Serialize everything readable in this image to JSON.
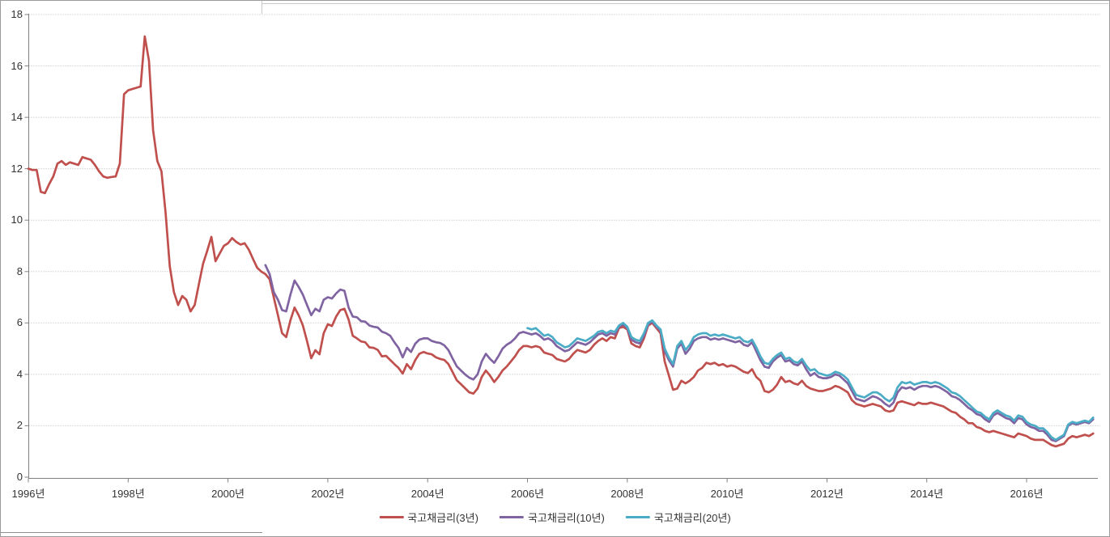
{
  "chart_data": {
    "type": "line",
    "title": "",
    "frequency": "monthly",
    "x_range": [
      "1996-01",
      "2017-05"
    ],
    "ylim": [
      0,
      18
    ],
    "grid": "horizontal-dotted",
    "legend_position": "bottom-center",
    "y_axis": {
      "min": 0,
      "max": 18,
      "tick_step": 2,
      "tick_labels": [
        "0",
        "2",
        "4",
        "6",
        "8",
        "10",
        "12",
        "14",
        "16",
        "18"
      ]
    },
    "x_axis": {
      "tick_interval_years": 2,
      "tick_labels": [
        "1996년",
        "1998년",
        "2000년",
        "2002년",
        "2004년",
        "2006년",
        "2008년",
        "2010년",
        "2012년",
        "2014년",
        "2016년"
      ]
    },
    "series": [
      {
        "name": "국고채금리(3년)",
        "color": "#C0504D",
        "start_month": "1996-01",
        "values": [
          12.0,
          11.95,
          11.95,
          11.1,
          11.05,
          11.4,
          11.7,
          12.2,
          12.3,
          12.15,
          12.25,
          12.2,
          12.15,
          12.45,
          12.4,
          12.35,
          12.15,
          11.9,
          11.7,
          11.65,
          11.68,
          11.7,
          12.2,
          14.9,
          15.05,
          15.1,
          15.15,
          15.2,
          17.15,
          16.2,
          13.5,
          12.3,
          11.9,
          10.3,
          8.2,
          7.2,
          6.7,
          7.05,
          6.9,
          6.45,
          6.7,
          7.5,
          8.3,
          8.8,
          9.35,
          8.4,
          8.7,
          9.0,
          9.1,
          9.3,
          9.15,
          9.05,
          9.1,
          8.85,
          8.5,
          8.15,
          8.0,
          7.9,
          7.7,
          7.0,
          6.3,
          5.6,
          5.45,
          6.1,
          6.6,
          6.3,
          5.9,
          5.3,
          4.63,
          4.94,
          4.78,
          5.6,
          5.95,
          5.88,
          6.25,
          6.5,
          6.55,
          6.13,
          5.5,
          5.4,
          5.28,
          5.25,
          5.05,
          5.03,
          4.95,
          4.7,
          4.72,
          4.56,
          4.4,
          4.25,
          4.03,
          4.4,
          4.2,
          4.55,
          4.8,
          4.87,
          4.81,
          4.78,
          4.66,
          4.6,
          4.56,
          4.4,
          4.09,
          3.77,
          3.62,
          3.46,
          3.3,
          3.25,
          3.45,
          3.9,
          4.15,
          3.95,
          3.7,
          3.9,
          4.15,
          4.3,
          4.5,
          4.7,
          4.95,
          5.1,
          5.1,
          5.05,
          5.1,
          5.05,
          4.85,
          4.8,
          4.75,
          4.6,
          4.55,
          4.5,
          4.6,
          4.8,
          4.95,
          4.9,
          4.85,
          4.95,
          5.15,
          5.3,
          5.4,
          5.3,
          5.45,
          5.4,
          5.8,
          5.85,
          5.75,
          5.2,
          5.1,
          5.05,
          5.4,
          5.9,
          6.0,
          5.8,
          5.6,
          4.5,
          3.95,
          3.4,
          3.45,
          3.75,
          3.65,
          3.75,
          3.9,
          4.15,
          4.25,
          4.45,
          4.4,
          4.45,
          4.35,
          4.4,
          4.3,
          4.35,
          4.3,
          4.2,
          4.1,
          4.05,
          4.2,
          3.9,
          3.75,
          3.35,
          3.3,
          3.4,
          3.6,
          3.9,
          3.7,
          3.75,
          3.65,
          3.6,
          3.75,
          3.55,
          3.45,
          3.4,
          3.35,
          3.35,
          3.4,
          3.45,
          3.55,
          3.5,
          3.4,
          3.3,
          3.0,
          2.85,
          2.8,
          2.75,
          2.8,
          2.85,
          2.8,
          2.75,
          2.6,
          2.55,
          2.6,
          2.9,
          2.95,
          2.9,
          2.85,
          2.8,
          2.9,
          2.85,
          2.85,
          2.9,
          2.85,
          2.8,
          2.75,
          2.65,
          2.55,
          2.5,
          2.35,
          2.25,
          2.1,
          2.1,
          1.95,
          1.9,
          1.8,
          1.75,
          1.8,
          1.75,
          1.7,
          1.65,
          1.6,
          1.55,
          1.7,
          1.65,
          1.6,
          1.5,
          1.45,
          1.45,
          1.45,
          1.35,
          1.25,
          1.2,
          1.25,
          1.3,
          1.5,
          1.6,
          1.55,
          1.6,
          1.65,
          1.6,
          1.7
        ]
      },
      {
        "name": "국고채금리(10년)",
        "color": "#8064A2",
        "start_month": "2000-10",
        "values": [
          8.25,
          7.9,
          7.2,
          6.9,
          6.5,
          6.45,
          7.1,
          7.65,
          7.4,
          7.1,
          6.7,
          6.3,
          6.55,
          6.45,
          6.9,
          7.0,
          6.95,
          7.15,
          7.3,
          7.25,
          6.6,
          6.25,
          6.22,
          6.07,
          6.05,
          5.9,
          5.85,
          5.82,
          5.66,
          5.6,
          5.5,
          5.25,
          5.03,
          4.66,
          5.03,
          4.87,
          5.19,
          5.35,
          5.4,
          5.4,
          5.3,
          5.25,
          5.22,
          5.13,
          4.94,
          4.62,
          4.31,
          4.15,
          4.0,
          3.87,
          3.8,
          4.0,
          4.5,
          4.8,
          4.6,
          4.45,
          4.7,
          5.0,
          5.15,
          5.25,
          5.4,
          5.6,
          5.65,
          5.6,
          5.55,
          5.6,
          5.5,
          5.35,
          5.4,
          5.3,
          5.1,
          5.0,
          4.9,
          4.95,
          5.1,
          5.25,
          5.2,
          5.15,
          5.25,
          5.4,
          5.55,
          5.6,
          5.5,
          5.6,
          5.55,
          5.85,
          5.95,
          5.8,
          5.35,
          5.25,
          5.2,
          5.5,
          5.95,
          6.05,
          5.85,
          5.7,
          4.9,
          4.55,
          4.3,
          5.0,
          5.2,
          4.8,
          5.0,
          5.3,
          5.4,
          5.45,
          5.45,
          5.35,
          5.4,
          5.35,
          5.4,
          5.35,
          5.3,
          5.25,
          5.3,
          5.15,
          5.1,
          5.25,
          4.9,
          4.55,
          4.3,
          4.25,
          4.5,
          4.65,
          4.75,
          4.5,
          4.55,
          4.4,
          4.35,
          4.5,
          4.2,
          3.95,
          4.05,
          3.9,
          3.85,
          3.85,
          3.9,
          4.0,
          3.95,
          3.8,
          3.65,
          3.35,
          3.05,
          3.0,
          2.95,
          3.05,
          3.15,
          3.1,
          3.0,
          2.85,
          2.75,
          2.9,
          3.3,
          3.5,
          3.45,
          3.5,
          3.4,
          3.5,
          3.55,
          3.55,
          3.5,
          3.55,
          3.5,
          3.4,
          3.3,
          3.15,
          3.1,
          3.0,
          2.85,
          2.7,
          2.6,
          2.45,
          2.4,
          2.25,
          2.15,
          2.4,
          2.5,
          2.4,
          2.3,
          2.25,
          2.1,
          2.3,
          2.25,
          2.05,
          1.95,
          1.9,
          1.8,
          1.8,
          1.65,
          1.45,
          1.4,
          1.5,
          1.6,
          2.0,
          2.1,
          2.05,
          2.1,
          2.15,
          2.1,
          2.25
        ]
      },
      {
        "name": "국고채금리(20년)",
        "color": "#4BACC6",
        "start_month": "2006-01",
        "values": [
          5.8,
          5.75,
          5.8,
          5.65,
          5.5,
          5.55,
          5.45,
          5.25,
          5.15,
          5.05,
          5.1,
          5.25,
          5.4,
          5.35,
          5.3,
          5.4,
          5.5,
          5.65,
          5.7,
          5.6,
          5.7,
          5.65,
          5.9,
          6.0,
          5.85,
          5.45,
          5.35,
          5.3,
          5.6,
          6.0,
          6.1,
          5.9,
          5.75,
          5.0,
          4.65,
          4.4,
          5.1,
          5.3,
          4.95,
          5.15,
          5.45,
          5.55,
          5.6,
          5.6,
          5.5,
          5.55,
          5.5,
          5.55,
          5.5,
          5.45,
          5.4,
          5.45,
          5.3,
          5.25,
          5.35,
          5.05,
          4.7,
          4.45,
          4.4,
          4.6,
          4.75,
          4.85,
          4.6,
          4.65,
          4.5,
          4.45,
          4.6,
          4.35,
          4.15,
          4.2,
          4.05,
          4.0,
          3.95,
          4.0,
          4.1,
          4.05,
          3.95,
          3.8,
          3.5,
          3.2,
          3.15,
          3.1,
          3.2,
          3.3,
          3.3,
          3.2,
          3.05,
          2.95,
          3.1,
          3.5,
          3.7,
          3.65,
          3.7,
          3.6,
          3.65,
          3.7,
          3.7,
          3.65,
          3.7,
          3.65,
          3.55,
          3.45,
          3.3,
          3.25,
          3.15,
          3.0,
          2.85,
          2.7,
          2.55,
          2.5,
          2.35,
          2.25,
          2.5,
          2.6,
          2.5,
          2.4,
          2.35,
          2.2,
          2.4,
          2.35,
          2.15,
          2.05,
          2.0,
          1.9,
          1.9,
          1.75,
          1.55,
          1.45,
          1.55,
          1.65,
          2.05,
          2.15,
          2.1,
          2.15,
          2.2,
          2.15,
          2.32
        ]
      }
    ],
    "legend": {
      "labels": [
        "국고채금리(3년)",
        "국고채금리(10년)",
        "국고채금리(20년)"
      ]
    }
  },
  "style": {
    "grid_color": "#b8b8b8",
    "axis_color": "#808080",
    "text_color": "#333333",
    "background": "#ffffff",
    "series_colors": [
      "#C0504D",
      "#8064A2",
      "#4BACC6"
    ]
  }
}
